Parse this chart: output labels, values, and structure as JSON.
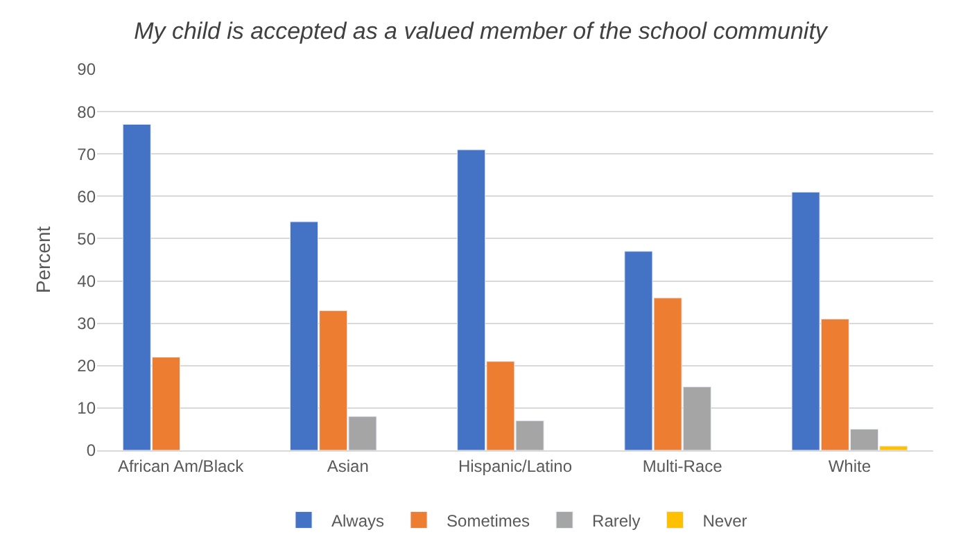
{
  "chart_data": {
    "type": "bar",
    "title": "My child is accepted as a valued member of the school community",
    "ylabel": "Percent",
    "categories": [
      "African Am/Black",
      "Asian",
      "Hispanic/Latino",
      "Multi-Race",
      "White"
    ],
    "series": [
      {
        "name": "Always",
        "color": "#4472c4",
        "values": [
          77,
          54,
          71,
          47,
          61
        ]
      },
      {
        "name": "Sometimes",
        "color": "#ed7d31",
        "values": [
          22,
          33,
          21,
          36,
          31
        ]
      },
      {
        "name": "Rarely",
        "color": "#a5a5a5",
        "values": [
          null,
          8,
          7,
          15,
          5
        ]
      },
      {
        "name": "Never",
        "color": "#ffc000",
        "values": [
          null,
          null,
          null,
          null,
          1
        ]
      }
    ],
    "ylim": [
      0,
      90
    ],
    "yticks": [
      0,
      10,
      20,
      30,
      40,
      50,
      60,
      70,
      80,
      90
    ],
    "grid": "y",
    "legend": "bottom"
  }
}
